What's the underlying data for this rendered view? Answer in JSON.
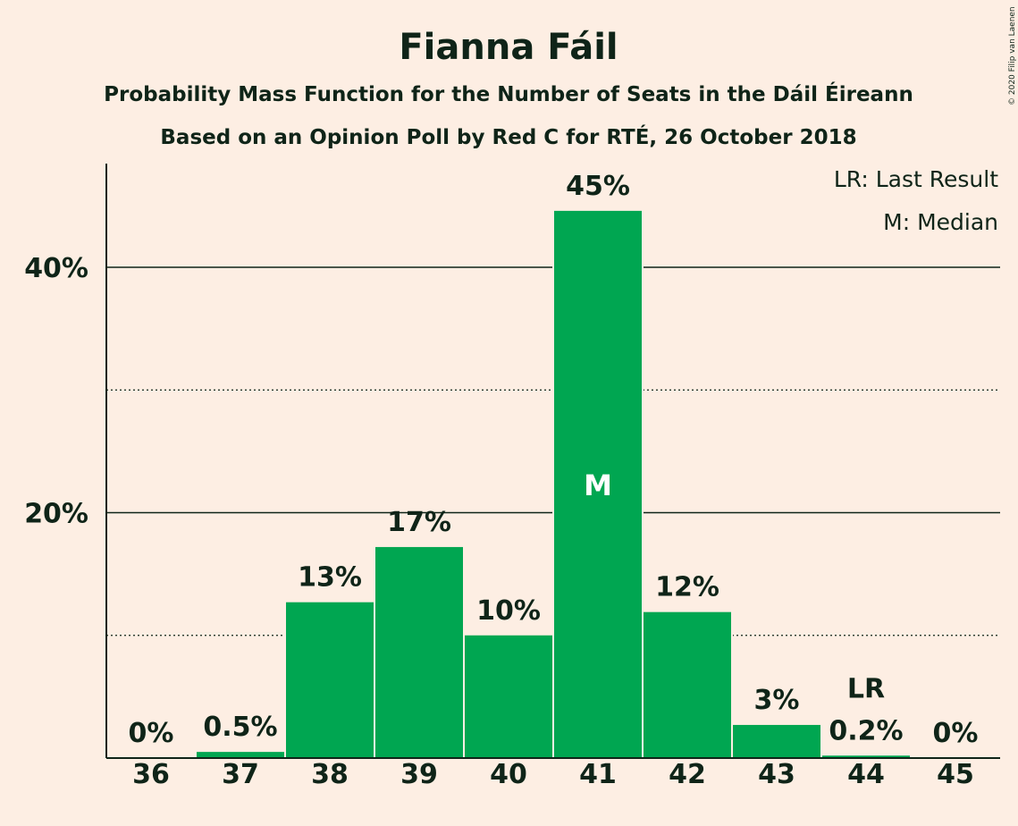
{
  "chart_data": {
    "type": "bar",
    "title": "Fianna Fáil",
    "subtitle1": "Probability Mass Function for the Number of Seats in the Dáil Éireann",
    "subtitle2": "Based on an Opinion Poll by Red C for RTÉ, 26 October 2018",
    "categories": [
      "36",
      "37",
      "38",
      "39",
      "40",
      "41",
      "42",
      "43",
      "44",
      "45"
    ],
    "values": [
      0,
      0.5,
      12.7,
      17.2,
      10.0,
      44.6,
      11.9,
      2.7,
      0.2,
      0
    ],
    "data_labels": [
      "0%",
      "0.5%",
      "13%",
      "17%",
      "10%",
      "45%",
      "12%",
      "3%",
      "0.2%",
      "0%"
    ],
    "yticks": [
      {
        "value": 20,
        "label": "20%"
      },
      {
        "value": 40,
        "label": "40%"
      }
    ],
    "minor_gridlines": [
      10,
      30
    ],
    "ylim": [
      0,
      48.5
    ],
    "bar_color": "#00A651",
    "median_category": "41",
    "median_marker": "M",
    "last_result_category": "44",
    "last_result_marker": "LR",
    "legend": [
      "LR: Last Result",
      "M: Median"
    ],
    "legend_placement": "top-right",
    "copyright": "© 2020 Filip van Laenen"
  }
}
